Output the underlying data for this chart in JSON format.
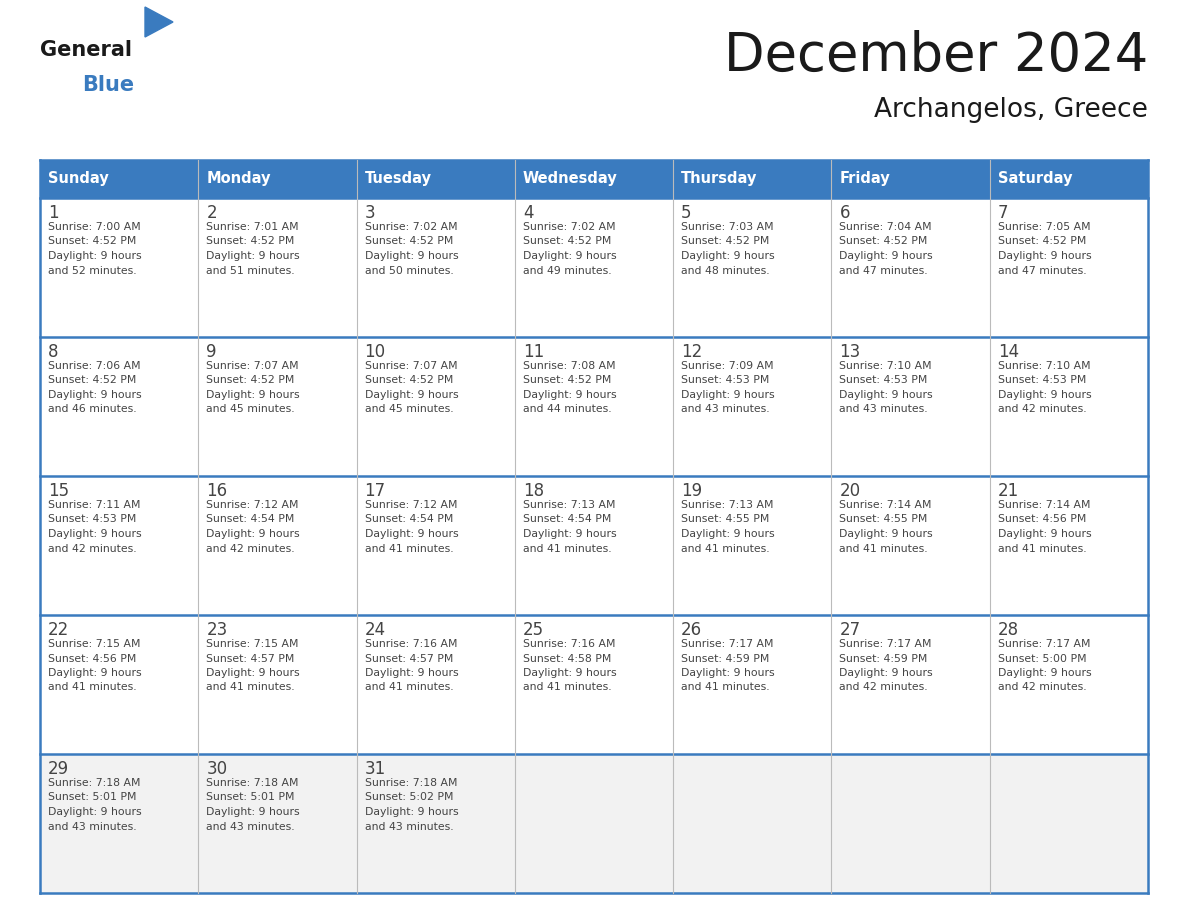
{
  "title": "December 2024",
  "subtitle": "Archangelos, Greece",
  "days_of_week": [
    "Sunday",
    "Monday",
    "Tuesday",
    "Wednesday",
    "Thursday",
    "Friday",
    "Saturday"
  ],
  "header_bg": "#3a7bbf",
  "header_text": "#ffffff",
  "cell_bg_white": "#ffffff",
  "cell_bg_gray": "#f2f2f2",
  "cell_border_color": "#3a7bbf",
  "cell_inner_border": "#cccccc",
  "text_color": "#444444",
  "title_color": "#1a1a1a",
  "logo_general_color": "#1a1a1a",
  "logo_blue_color": "#3a7bbf",
  "weeks": [
    [
      {
        "day": 1,
        "sunrise": "7:00 AM",
        "sunset": "4:52 PM",
        "daylight_h": "9 hours",
        "daylight_m": "and 52 minutes."
      },
      {
        "day": 2,
        "sunrise": "7:01 AM",
        "sunset": "4:52 PM",
        "daylight_h": "9 hours",
        "daylight_m": "and 51 minutes."
      },
      {
        "day": 3,
        "sunrise": "7:02 AM",
        "sunset": "4:52 PM",
        "daylight_h": "9 hours",
        "daylight_m": "and 50 minutes."
      },
      {
        "day": 4,
        "sunrise": "7:02 AM",
        "sunset": "4:52 PM",
        "daylight_h": "9 hours",
        "daylight_m": "and 49 minutes."
      },
      {
        "day": 5,
        "sunrise": "7:03 AM",
        "sunset": "4:52 PM",
        "daylight_h": "9 hours",
        "daylight_m": "and 48 minutes."
      },
      {
        "day": 6,
        "sunrise": "7:04 AM",
        "sunset": "4:52 PM",
        "daylight_h": "9 hours",
        "daylight_m": "and 47 minutes."
      },
      {
        "day": 7,
        "sunrise": "7:05 AM",
        "sunset": "4:52 PM",
        "daylight_h": "9 hours",
        "daylight_m": "and 47 minutes."
      }
    ],
    [
      {
        "day": 8,
        "sunrise": "7:06 AM",
        "sunset": "4:52 PM",
        "daylight_h": "9 hours",
        "daylight_m": "and 46 minutes."
      },
      {
        "day": 9,
        "sunrise": "7:07 AM",
        "sunset": "4:52 PM",
        "daylight_h": "9 hours",
        "daylight_m": "and 45 minutes."
      },
      {
        "day": 10,
        "sunrise": "7:07 AM",
        "sunset": "4:52 PM",
        "daylight_h": "9 hours",
        "daylight_m": "and 45 minutes."
      },
      {
        "day": 11,
        "sunrise": "7:08 AM",
        "sunset": "4:52 PM",
        "daylight_h": "9 hours",
        "daylight_m": "and 44 minutes."
      },
      {
        "day": 12,
        "sunrise": "7:09 AM",
        "sunset": "4:53 PM",
        "daylight_h": "9 hours",
        "daylight_m": "and 43 minutes."
      },
      {
        "day": 13,
        "sunrise": "7:10 AM",
        "sunset": "4:53 PM",
        "daylight_h": "9 hours",
        "daylight_m": "and 43 minutes."
      },
      {
        "day": 14,
        "sunrise": "7:10 AM",
        "sunset": "4:53 PM",
        "daylight_h": "9 hours",
        "daylight_m": "and 42 minutes."
      }
    ],
    [
      {
        "day": 15,
        "sunrise": "7:11 AM",
        "sunset": "4:53 PM",
        "daylight_h": "9 hours",
        "daylight_m": "and 42 minutes."
      },
      {
        "day": 16,
        "sunrise": "7:12 AM",
        "sunset": "4:54 PM",
        "daylight_h": "9 hours",
        "daylight_m": "and 42 minutes."
      },
      {
        "day": 17,
        "sunrise": "7:12 AM",
        "sunset": "4:54 PM",
        "daylight_h": "9 hours",
        "daylight_m": "and 41 minutes."
      },
      {
        "day": 18,
        "sunrise": "7:13 AM",
        "sunset": "4:54 PM",
        "daylight_h": "9 hours",
        "daylight_m": "and 41 minutes."
      },
      {
        "day": 19,
        "sunrise": "7:13 AM",
        "sunset": "4:55 PM",
        "daylight_h": "9 hours",
        "daylight_m": "and 41 minutes."
      },
      {
        "day": 20,
        "sunrise": "7:14 AM",
        "sunset": "4:55 PM",
        "daylight_h": "9 hours",
        "daylight_m": "and 41 minutes."
      },
      {
        "day": 21,
        "sunrise": "7:14 AM",
        "sunset": "4:56 PM",
        "daylight_h": "9 hours",
        "daylight_m": "and 41 minutes."
      }
    ],
    [
      {
        "day": 22,
        "sunrise": "7:15 AM",
        "sunset": "4:56 PM",
        "daylight_h": "9 hours",
        "daylight_m": "and 41 minutes."
      },
      {
        "day": 23,
        "sunrise": "7:15 AM",
        "sunset": "4:57 PM",
        "daylight_h": "9 hours",
        "daylight_m": "and 41 minutes."
      },
      {
        "day": 24,
        "sunrise": "7:16 AM",
        "sunset": "4:57 PM",
        "daylight_h": "9 hours",
        "daylight_m": "and 41 minutes."
      },
      {
        "day": 25,
        "sunrise": "7:16 AM",
        "sunset": "4:58 PM",
        "daylight_h": "9 hours",
        "daylight_m": "and 41 minutes."
      },
      {
        "day": 26,
        "sunrise": "7:17 AM",
        "sunset": "4:59 PM",
        "daylight_h": "9 hours",
        "daylight_m": "and 41 minutes."
      },
      {
        "day": 27,
        "sunrise": "7:17 AM",
        "sunset": "4:59 PM",
        "daylight_h": "9 hours",
        "daylight_m": "and 42 minutes."
      },
      {
        "day": 28,
        "sunrise": "7:17 AM",
        "sunset": "5:00 PM",
        "daylight_h": "9 hours",
        "daylight_m": "and 42 minutes."
      }
    ],
    [
      {
        "day": 29,
        "sunrise": "7:18 AM",
        "sunset": "5:01 PM",
        "daylight_h": "9 hours",
        "daylight_m": "and 43 minutes."
      },
      {
        "day": 30,
        "sunrise": "7:18 AM",
        "sunset": "5:01 PM",
        "daylight_h": "9 hours",
        "daylight_m": "and 43 minutes."
      },
      {
        "day": 31,
        "sunrise": "7:18 AM",
        "sunset": "5:02 PM",
        "daylight_h": "9 hours",
        "daylight_m": "and 43 minutes."
      },
      null,
      null,
      null,
      null
    ]
  ]
}
